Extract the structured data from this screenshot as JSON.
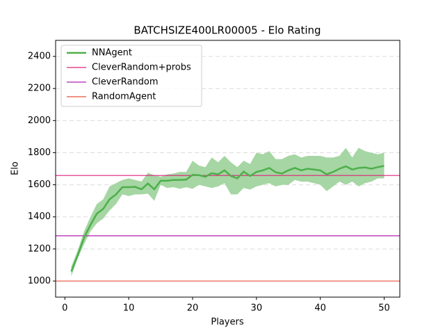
{
  "chart_data": {
    "type": "line",
    "title": "BATCHSIZE400LR00005 - Elo Rating",
    "xlabel": "Players",
    "ylabel": "Elo",
    "x": [
      1,
      2,
      3,
      4,
      5,
      6,
      7,
      8,
      9,
      10,
      11,
      12,
      13,
      14,
      15,
      16,
      17,
      18,
      19,
      20,
      21,
      22,
      23,
      24,
      25,
      26,
      27,
      28,
      29,
      30,
      31,
      32,
      33,
      34,
      35,
      36,
      37,
      38,
      39,
      40,
      41,
      42,
      43,
      44,
      45,
      46,
      47,
      48,
      49,
      50
    ],
    "series": [
      {
        "name": "NNAgent",
        "color": "#4daf4a",
        "values": [
          1060,
          1160,
          1270,
          1350,
          1420,
          1450,
          1510,
          1540,
          1585,
          1585,
          1587,
          1572,
          1608,
          1572,
          1625,
          1625,
          1630,
          1630,
          1632,
          1662,
          1660,
          1650,
          1672,
          1665,
          1690,
          1655,
          1640,
          1682,
          1655,
          1680,
          1690,
          1705,
          1678,
          1670,
          1690,
          1705,
          1690,
          1700,
          1695,
          1690,
          1665,
          1680,
          1700,
          1715,
          1695,
          1705,
          1708,
          1700,
          1710,
          1718
        ],
        "band_upper": [
          1090,
          1190,
          1310,
          1400,
          1480,
          1510,
          1590,
          1610,
          1630,
          1640,
          1630,
          1620,
          1675,
          1660,
          1650,
          1665,
          1670,
          1680,
          1680,
          1750,
          1720,
          1710,
          1770,
          1740,
          1780,
          1740,
          1710,
          1750,
          1730,
          1800,
          1790,
          1810,
          1760,
          1760,
          1780,
          1790,
          1770,
          1780,
          1780,
          1780,
          1770,
          1770,
          1780,
          1830,
          1770,
          1830,
          1810,
          1800,
          1790,
          1800
        ],
        "band_lower": [
          1030,
          1140,
          1230,
          1310,
          1360,
          1390,
          1440,
          1480,
          1540,
          1530,
          1540,
          1540,
          1545,
          1500,
          1600,
          1580,
          1585,
          1575,
          1585,
          1575,
          1600,
          1590,
          1580,
          1590,
          1610,
          1540,
          1540,
          1580,
          1570,
          1590,
          1600,
          1610,
          1590,
          1600,
          1600,
          1630,
          1620,
          1620,
          1610,
          1600,
          1560,
          1590,
          1620,
          1600,
          1620,
          1590,
          1610,
          1620,
          1640,
          1640
        ],
        "band_color": "#a5d6a3"
      }
    ],
    "hlines": [
      {
        "name": "CleverRandom+probs",
        "color": "#e0207a",
        "value": 1658
      },
      {
        "name": "CleverRandom",
        "color": "#b020b0",
        "value": 1282
      },
      {
        "name": "RandomAgent",
        "color": "#e8503a",
        "value": 1000
      }
    ],
    "xlim": [
      -1.45,
      52.45
    ],
    "ylim": [
      900,
      2500
    ],
    "xticks": [
      0,
      10,
      20,
      30,
      40,
      50
    ],
    "yticks": [
      1000,
      1200,
      1400,
      1600,
      1800,
      2000,
      2200,
      2400
    ],
    "grid": true,
    "legend": "upper left"
  }
}
